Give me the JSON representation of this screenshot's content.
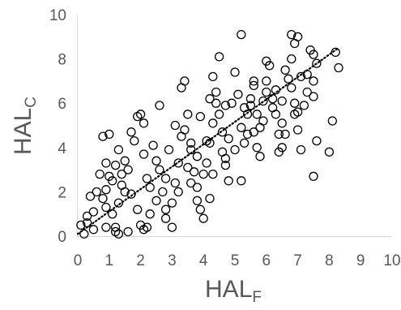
{
  "chart_data": {
    "type": "scatter",
    "title": "",
    "xlabel": {
      "main": "HAL",
      "sub": "F"
    },
    "ylabel": {
      "main": "HAL",
      "sub": "C"
    },
    "xlim": [
      0,
      10
    ],
    "ylim": [
      0,
      10
    ],
    "x_ticks": [
      "0",
      "1",
      "2",
      "3",
      "4",
      "5",
      "6",
      "7",
      "8",
      "9",
      "10"
    ],
    "y_ticks": [
      "0",
      "2",
      "4",
      "6",
      "8",
      "10"
    ],
    "grid": false,
    "legend": "none",
    "colors": {
      "axis": "#d9d9d9",
      "text": "#595959",
      "marker": "#000000",
      "trendline": "#000000"
    },
    "marker": "open-circle",
    "trendline": {
      "style": "dotted",
      "x": [
        0,
        8.3
      ],
      "y": [
        0.1,
        8.5
      ]
    },
    "series": [
      {
        "points": [
          [
            0.1,
            0.5
          ],
          [
            0.2,
            0.1
          ],
          [
            0.3,
            0.6
          ],
          [
            0.3,
            0.9
          ],
          [
            0.5,
            1.1
          ],
          [
            0.5,
            0.3
          ],
          [
            0.7,
            2.8
          ],
          [
            0.8,
            1.7
          ],
          [
            0.9,
            3.3
          ],
          [
            0.8,
            4.5
          ],
          [
            1.0,
            4.6
          ],
          [
            1.2,
            3.2
          ],
          [
            1.1,
            2.5
          ],
          [
            1.1,
            1.0
          ],
          [
            1.2,
            0.4
          ],
          [
            1.3,
            0.1
          ],
          [
            1.2,
            0.2
          ],
          [
            0.9,
            0.4
          ],
          [
            1.3,
            1.5
          ],
          [
            1.4,
            2.8
          ],
          [
            1.6,
            3.0
          ],
          [
            1.7,
            4.7
          ],
          [
            1.8,
            4.3
          ],
          [
            1.9,
            5.4
          ],
          [
            2.0,
            5.5
          ],
          [
            2.1,
            5.1
          ],
          [
            2.1,
            3.7
          ],
          [
            1.5,
            2.0
          ],
          [
            1.9,
            1.2
          ],
          [
            2.0,
            0.5
          ],
          [
            2.1,
            0.3
          ],
          [
            2.2,
            0.4
          ],
          [
            2.3,
            1.0
          ],
          [
            2.3,
            2.2
          ],
          [
            2.5,
            3.4
          ],
          [
            2.4,
            4.1
          ],
          [
            2.6,
            3.0
          ],
          [
            2.8,
            2.6
          ],
          [
            2.8,
            1.2
          ],
          [
            2.8,
            0.8
          ],
          [
            3.0,
            0.4
          ],
          [
            3.0,
            1.5
          ],
          [
            3.1,
            2.4
          ],
          [
            3.2,
            3.3
          ],
          [
            3.3,
            6.7
          ],
          [
            3.4,
            7.0
          ],
          [
            3.3,
            4.5
          ],
          [
            3.4,
            4.8
          ],
          [
            3.5,
            5.5
          ],
          [
            3.6,
            4.2
          ],
          [
            3.6,
            3.9
          ],
          [
            3.7,
            2.9
          ],
          [
            3.8,
            2.2
          ],
          [
            3.8,
            1.6
          ],
          [
            3.9,
            1.2
          ],
          [
            4.0,
            0.8
          ],
          [
            4.2,
            1.7
          ],
          [
            4.1,
            3.3
          ],
          [
            4.2,
            4.2
          ],
          [
            4.3,
            5.1
          ],
          [
            4.2,
            6.2
          ],
          [
            4.3,
            7.2
          ],
          [
            4.5,
            8.1
          ],
          [
            4.4,
            6.5
          ],
          [
            4.5,
            5.5
          ],
          [
            4.6,
            4.7
          ],
          [
            4.6,
            3.8
          ],
          [
            4.7,
            3.2
          ],
          [
            4.8,
            2.5
          ],
          [
            4.7,
            5.9
          ],
          [
            4.9,
            6.0
          ],
          [
            5.0,
            7.4
          ],
          [
            5.2,
            9.1
          ],
          [
            5.1,
            6.4
          ],
          [
            5.2,
            4.9
          ],
          [
            5.3,
            4.2
          ],
          [
            5.2,
            2.5
          ],
          [
            5.4,
            5.5
          ],
          [
            5.5,
            6.2
          ],
          [
            5.6,
            7.0
          ],
          [
            5.5,
            5.9
          ],
          [
            5.6,
            4.7
          ],
          [
            5.7,
            4.0
          ],
          [
            5.8,
            3.6
          ],
          [
            5.9,
            5.2
          ],
          [
            6.0,
            6.5
          ],
          [
            6.0,
            7.0
          ],
          [
            6.1,
            7.7
          ],
          [
            6.0,
            7.9
          ],
          [
            6.2,
            6.2
          ],
          [
            6.3,
            5.5
          ],
          [
            6.4,
            4.6
          ],
          [
            6.5,
            4.0
          ],
          [
            6.4,
            3.8
          ],
          [
            6.5,
            5.1
          ],
          [
            6.5,
            6.1
          ],
          [
            6.7,
            7.1
          ],
          [
            6.8,
            8.0
          ],
          [
            6.8,
            6.7
          ],
          [
            6.9,
            6.0
          ],
          [
            7.0,
            5.6
          ],
          [
            7.0,
            4.8
          ],
          [
            7.1,
            3.9
          ],
          [
            7.2,
            5.9
          ],
          [
            7.3,
            7.3
          ],
          [
            7.3,
            6.5
          ],
          [
            7.5,
            8.2
          ],
          [
            7.5,
            7.0
          ],
          [
            7.4,
            8.4
          ],
          [
            7.5,
            6.3
          ],
          [
            7.6,
            4.3
          ],
          [
            7.5,
            2.7
          ],
          [
            7.6,
            7.8
          ],
          [
            6.8,
            9.1
          ],
          [
            6.9,
            8.7
          ],
          [
            7.0,
            9.0
          ],
          [
            8.0,
            3.8
          ],
          [
            8.1,
            5.2
          ],
          [
            8.2,
            8.3
          ],
          [
            8.3,
            7.6
          ],
          [
            6.9,
            5.5
          ],
          [
            6.6,
            4.6
          ],
          [
            5.6,
            6.8
          ],
          [
            5.9,
            6.1
          ],
          [
            4.0,
            2.8
          ],
          [
            3.9,
            5.4
          ],
          [
            4.4,
            6.0
          ],
          [
            2.7,
            2.0
          ],
          [
            2.5,
            1.6
          ],
          [
            1.6,
            0.2
          ],
          [
            0.4,
            1.8
          ],
          [
            0.6,
            2.0
          ],
          [
            0.9,
            2.1
          ],
          [
            1.5,
            3.4
          ],
          [
            2.6,
            5.9
          ],
          [
            3.1,
            5.0
          ],
          [
            3.5,
            3.1
          ],
          [
            3.8,
            3.6
          ],
          [
            4.1,
            4.3
          ],
          [
            4.8,
            4.4
          ],
          [
            5.3,
            5.8
          ],
          [
            5.7,
            5.5
          ],
          [
            6.2,
            5.8
          ],
          [
            6.6,
            7.5
          ],
          [
            7.1,
            7.2
          ],
          [
            1.4,
            2.3
          ],
          [
            1.7,
            1.9
          ],
          [
            2.2,
            2.6
          ],
          [
            2.9,
            3.9
          ],
          [
            3.2,
            2.0
          ],
          [
            3.6,
            2.4
          ],
          [
            4.3,
            2.8
          ],
          [
            4.7,
            3.5
          ],
          [
            5.0,
            3.9
          ],
          [
            5.4,
            4.6
          ],
          [
            5.8,
            4.9
          ],
          [
            6.3,
            6.6
          ],
          [
            0.9,
            1.3
          ],
          [
            1.0,
            2.7
          ],
          [
            1.3,
            3.9
          ]
        ]
      }
    ]
  }
}
